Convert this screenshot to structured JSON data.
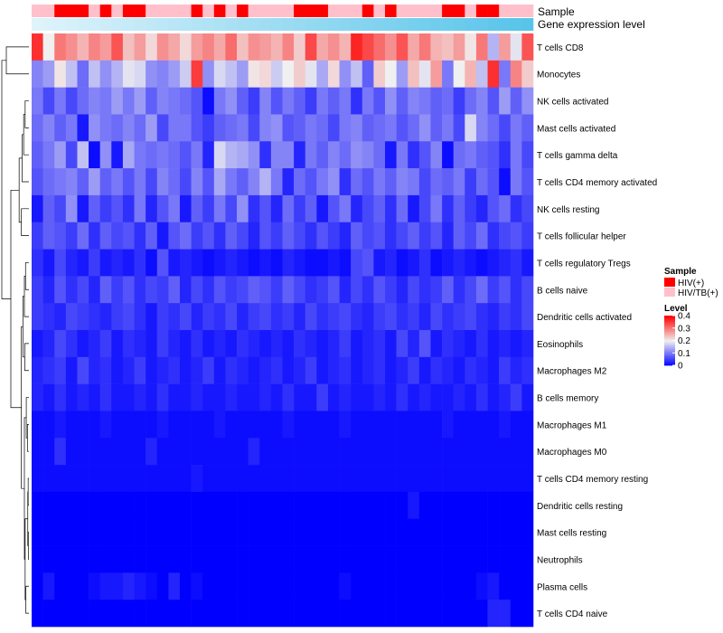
{
  "chart_data": {
    "type": "heatmap",
    "annotation_labels": {
      "sample": "Sample",
      "gene_expression": "Gene expression level"
    },
    "rows": [
      "T cells CD8",
      "Monocytes",
      "NK cells activated",
      "Mast cells activated",
      "T cells gamma delta",
      "T cells CD4 memory activated",
      "NK cells resting",
      "T cells follicular helper",
      "T cells regulatory  Tregs",
      "B cells naive",
      "Dendritic cells activated",
      "Eosinophils",
      "Macrophages M2",
      "B cells memory",
      "Macrophages M1",
      "Macrophages M0",
      "T cells CD4 memory resting",
      "Dendritic cells resting",
      "Mast cells resting",
      "Neutrophils",
      "Plasma cells",
      "T cells CD4 naive"
    ],
    "columns": 44,
    "sample_groups": [
      "HIV(+)",
      "HIV/TB(+)"
    ],
    "sample_annotation": [
      1,
      1,
      0,
      0,
      0,
      1,
      0,
      1,
      0,
      0,
      1,
      1,
      1,
      1,
      0,
      1,
      0,
      1,
      0,
      1,
      1,
      1,
      1,
      0,
      0,
      0,
      1,
      1,
      1,
      0,
      1,
      0,
      1,
      1,
      1,
      1,
      0,
      0,
      1,
      0,
      0,
      1,
      1,
      1
    ],
    "value_range": [
      0,
      0.4
    ],
    "legend": {
      "sample_title": "Sample",
      "sample_items": [
        {
          "label": "HIV(+)",
          "color": "#ff0000"
        },
        {
          "label": "HIV/TB(+)",
          "color": "#ffc0cb"
        }
      ],
      "level_title": "Level",
      "level_ticks": [
        "0.4",
        "0.3",
        "0.2",
        "0.1",
        "0"
      ],
      "level_values": [
        0.4,
        0.3,
        0.2,
        0.1,
        0
      ]
    },
    "colors": {
      "low": "#0000ff",
      "mid": "#f0f0f0",
      "high": "#ff0000",
      "annot_low": "#dff3fb",
      "annot_high": "#58c4ea"
    },
    "dendrogram": [
      {
        "a": 0,
        "b": 1,
        "h": 0.3
      },
      {
        "a": 2,
        "b": 3,
        "h": 0.05
      },
      {
        "a": "n1",
        "b": 4,
        "h": 0.07
      },
      {
        "a": "n2",
        "b": 5,
        "h": 0.09
      },
      {
        "a": 6,
        "b": 7,
        "h": 0.1
      },
      {
        "a": "n3",
        "b": "n4",
        "h": 0.13
      },
      {
        "a": 8,
        "b": 9,
        "h": 0.045
      },
      {
        "a": "n6",
        "b": 10,
        "h": 0.06
      },
      {
        "a": 11,
        "b": 12,
        "h": 0.055
      },
      {
        "a": "n7",
        "b": "n8",
        "h": 0.08
      },
      {
        "a": 14,
        "b": 15,
        "h": 0.02
      },
      {
        "a": 13,
        "b": "n10",
        "h": 0.035
      },
      {
        "a": 16,
        "b": 17,
        "h": 0.01
      },
      {
        "a": 18,
        "b": 19,
        "h": 0.008
      },
      {
        "a": "n12",
        "b": "n13",
        "h": 0.015
      },
      {
        "a": 20,
        "b": 21,
        "h": 0.04
      },
      {
        "a": "n14",
        "b": "n15",
        "h": 0.05
      },
      {
        "a": "n11",
        "b": "n16",
        "h": 0.06
      },
      {
        "a": "n9",
        "b": "n17",
        "h": 0.1
      },
      {
        "a": "n5",
        "b": "n18",
        "h": 0.24
      },
      {
        "a": "n0",
        "b": "n19",
        "h": 0.36
      }
    ],
    "values": [
      [
        0.36,
        0.2,
        0.3,
        0.28,
        0.25,
        0.29,
        0.27,
        0.33,
        0.24,
        0.27,
        0.22,
        0.28,
        0.26,
        0.22,
        0.27,
        0.29,
        0.26,
        0.31,
        0.24,
        0.28,
        0.27,
        0.25,
        0.29,
        0.23,
        0.34,
        0.26,
        0.28,
        0.25,
        0.37,
        0.34,
        0.31,
        0.28,
        0.33,
        0.26,
        0.3,
        0.25,
        0.24,
        0.27,
        0.21,
        0.3,
        0.15,
        0.27,
        0.19,
        0.33
      ],
      [
        0.11,
        0.13,
        0.21,
        0.16,
        0.09,
        0.16,
        0.12,
        0.15,
        0.19,
        0.18,
        0.12,
        0.11,
        0.13,
        0.17,
        0.35,
        0.12,
        0.18,
        0.16,
        0.13,
        0.21,
        0.22,
        0.17,
        0.2,
        0.23,
        0.19,
        0.14,
        0.22,
        0.12,
        0.16,
        0.08,
        0.23,
        0.2,
        0.13,
        0.24,
        0.19,
        0.27,
        0.1,
        0.2,
        0.25,
        0.16,
        0.36,
        0.1,
        0.29,
        0.23
      ],
      [
        0.1,
        0.06,
        0.1,
        0.06,
        0.09,
        0.11,
        0.1,
        0.13,
        0.1,
        0.13,
        0.08,
        0.11,
        0.1,
        0.09,
        0.07,
        0.01,
        0.1,
        0.12,
        0.08,
        0.05,
        0.11,
        0.07,
        0.1,
        0.08,
        0.05,
        0.1,
        0.08,
        0.1,
        0.04,
        0.1,
        0.07,
        0.12,
        0.08,
        0.11,
        0.1,
        0.08,
        0.09,
        0.05,
        0.09,
        0.11,
        0.07,
        0.13,
        0.08,
        0.12
      ],
      [
        0.09,
        0.11,
        0.08,
        0.1,
        0.02,
        0.12,
        0.1,
        0.09,
        0.11,
        0.09,
        0.13,
        0.06,
        0.1,
        0.1,
        0.07,
        0.05,
        0.08,
        0.09,
        0.1,
        0.06,
        0.11,
        0.12,
        0.07,
        0.08,
        0.1,
        0.09,
        0.06,
        0.1,
        0.11,
        0.08,
        0.09,
        0.1,
        0.07,
        0.09,
        0.12,
        0.08,
        0.1,
        0.06,
        0.18,
        0.11,
        0.09,
        0.06,
        0.1,
        0.08
      ],
      [
        0.08,
        0.1,
        0.13,
        0.06,
        0.16,
        0.01,
        0.12,
        0.02,
        0.14,
        0.1,
        0.09,
        0.1,
        0.09,
        0.07,
        0.1,
        0.03,
        0.18,
        0.15,
        0.14,
        0.12,
        0.04,
        0.11,
        0.11,
        0.03,
        0.1,
        0.08,
        0.11,
        0.09,
        0.12,
        0.11,
        0.09,
        0.02,
        0.1,
        0.04,
        0.07,
        0.11,
        0.01,
        0.09,
        0.1,
        0.08,
        0.07,
        0.04,
        0.1,
        0.06
      ],
      [
        0.07,
        0.09,
        0.1,
        0.11,
        0.08,
        0.13,
        0.08,
        0.1,
        0.07,
        0.1,
        0.06,
        0.11,
        0.09,
        0.06,
        0.11,
        0.07,
        0.14,
        0.1,
        0.08,
        0.11,
        0.15,
        0.1,
        0.03,
        0.09,
        0.07,
        0.1,
        0.12,
        0.04,
        0.09,
        0.07,
        0.1,
        0.08,
        0.11,
        0.1,
        0.06,
        0.09,
        0.08,
        0.1,
        0.05,
        0.09,
        0.07,
        0.01,
        0.1,
        0.07
      ],
      [
        0.02,
        0.08,
        0.06,
        0.12,
        0.02,
        0.08,
        0.05,
        0.07,
        0.04,
        0.1,
        0.03,
        0.07,
        0.1,
        0.02,
        0.08,
        0.05,
        0.1,
        0.06,
        0.12,
        0.04,
        0.07,
        0.03,
        0.09,
        0.05,
        0.08,
        0.02,
        0.07,
        0.1,
        0.03,
        0.06,
        0.08,
        0.04,
        0.09,
        0.02,
        0.06,
        0.1,
        0.04,
        0.08,
        0.05,
        0.03,
        0.07,
        0.09,
        0.04,
        0.06
      ],
      [
        0.05,
        0.08,
        0.07,
        0.05,
        0.09,
        0.04,
        0.08,
        0.06,
        0.07,
        0.04,
        0.08,
        0.02,
        0.07,
        0.09,
        0.05,
        0.07,
        0.04,
        0.08,
        0.06,
        0.03,
        0.07,
        0.05,
        0.08,
        0.06,
        0.04,
        0.07,
        0.05,
        0.03,
        0.08,
        0.06,
        0.07,
        0.04,
        0.06,
        0.08,
        0.05,
        0.07,
        0.03,
        0.08,
        0.06,
        0.09,
        0.04,
        0.06,
        0.07,
        0.05
      ],
      [
        0.04,
        0.02,
        0.06,
        0.03,
        0.02,
        0.05,
        0.02,
        0.03,
        0.02,
        0.04,
        0.01,
        0.07,
        0.02,
        0.03,
        0.02,
        0.01,
        0.02,
        0.03,
        0.02,
        0.01,
        0.02,
        0.01,
        0.03,
        0.02,
        0.01,
        0.01,
        0.02,
        0.01,
        0.06,
        0.07,
        0.02,
        0.03,
        0.01,
        0.02,
        0.04,
        0.01,
        0.02,
        0.03,
        0.02,
        0.01,
        0.02,
        0.03,
        0.04,
        0.02
      ],
      [
        0.05,
        0.03,
        0.07,
        0.04,
        0.06,
        0.03,
        0.08,
        0.05,
        0.07,
        0.04,
        0.06,
        0.05,
        0.08,
        0.03,
        0.06,
        0.04,
        0.07,
        0.05,
        0.06,
        0.08,
        0.07,
        0.05,
        0.08,
        0.06,
        0.04,
        0.05,
        0.07,
        0.03,
        0.06,
        0.04,
        0.07,
        0.05,
        0.03,
        0.06,
        0.04,
        0.05,
        0.08,
        0.04,
        0.06,
        0.09,
        0.05,
        0.07,
        0.04,
        0.06
      ],
      [
        0.05,
        0.04,
        0.03,
        0.06,
        0.05,
        0.04,
        0.03,
        0.05,
        0.06,
        0.04,
        0.02,
        0.05,
        0.04,
        0.06,
        0.03,
        0.05,
        0.04,
        0.06,
        0.03,
        0.05,
        0.06,
        0.04,
        0.05,
        0.03,
        0.06,
        0.04,
        0.05,
        0.06,
        0.04,
        0.03,
        0.05,
        0.06,
        0.04,
        0.05,
        0.03,
        0.06,
        0.04,
        0.05,
        0.06,
        0.04,
        0.03,
        0.05,
        0.04,
        0.06
      ],
      [
        0.02,
        0.03,
        0.06,
        0.04,
        0.02,
        0.03,
        0.05,
        0.02,
        0.04,
        0.03,
        0.02,
        0.05,
        0.03,
        0.02,
        0.04,
        0.02,
        0.03,
        0.02,
        0.04,
        0.03,
        0.02,
        0.03,
        0.02,
        0.04,
        0.03,
        0.02,
        0.03,
        0.05,
        0.02,
        0.03,
        0.04,
        0.02,
        0.06,
        0.03,
        0.07,
        0.02,
        0.04,
        0.03,
        0.02,
        0.04,
        0.02,
        0.03,
        0.02,
        0.03
      ],
      [
        0.03,
        0.04,
        0.05,
        0.02,
        0.06,
        0.03,
        0.04,
        0.02,
        0.03,
        0.05,
        0.02,
        0.03,
        0.04,
        0.02,
        0.03,
        0.05,
        0.02,
        0.04,
        0.03,
        0.02,
        0.03,
        0.04,
        0.02,
        0.03,
        0.05,
        0.02,
        0.03,
        0.04,
        0.02,
        0.03,
        0.04,
        0.02,
        0.03,
        0.05,
        0.02,
        0.04,
        0.03,
        0.02,
        0.04,
        0.03,
        0.02,
        0.05,
        0.03,
        0.04
      ],
      [
        0.03,
        0.02,
        0.04,
        0.02,
        0.03,
        0.02,
        0.04,
        0.02,
        0.02,
        0.03,
        0.02,
        0.04,
        0.02,
        0.02,
        0.03,
        0.02,
        0.02,
        0.03,
        0.02,
        0.02,
        0.03,
        0.02,
        0.04,
        0.02,
        0.02,
        0.05,
        0.02,
        0.03,
        0.02,
        0.02,
        0.03,
        0.02,
        0.04,
        0.02,
        0.03,
        0.02,
        0.02,
        0.03,
        0.02,
        0.04,
        0.02,
        0.03,
        0.05,
        0.02
      ],
      [
        0.01,
        0.01,
        0.02,
        0.01,
        0.01,
        0.01,
        0.02,
        0.01,
        0.01,
        0.01,
        0.01,
        0.02,
        0.01,
        0.01,
        0.01,
        0.01,
        0.02,
        0.01,
        0.01,
        0.01,
        0.01,
        0.01,
        0.02,
        0.01,
        0.01,
        0.01,
        0.01,
        0.02,
        0.01,
        0.01,
        0.01,
        0.01,
        0.01,
        0.01,
        0.01,
        0.01,
        0.02,
        0.01,
        0.01,
        0.01,
        0.01,
        0.02,
        0.01,
        0.01
      ],
      [
        0.01,
        0.01,
        0.04,
        0.01,
        0.01,
        0.01,
        0.01,
        0.01,
        0.01,
        0.01,
        0.03,
        0.01,
        0.01,
        0.01,
        0.01,
        0.01,
        0.01,
        0.01,
        0.01,
        0.03,
        0.01,
        0.01,
        0.01,
        0.01,
        0.01,
        0.01,
        0.01,
        0.01,
        0.01,
        0.01,
        0.01,
        0.01,
        0.01,
        0.01,
        0.01,
        0.01,
        0.01,
        0.01,
        0.01,
        0.01,
        0.01,
        0.01,
        0.01,
        0.01
      ],
      [
        0.01,
        0.01,
        0.01,
        0.01,
        0.01,
        0.01,
        0.01,
        0.01,
        0.01,
        0.01,
        0.01,
        0.01,
        0.01,
        0.01,
        0.02,
        0.01,
        0.01,
        0.01,
        0.01,
        0.01,
        0.01,
        0.01,
        0.01,
        0.01,
        0.01,
        0.01,
        0.01,
        0.01,
        0.01,
        0.01,
        0.01,
        0.01,
        0.01,
        0.01,
        0.01,
        0.01,
        0.01,
        0.01,
        0.01,
        0.01,
        0.01,
        0.01,
        0.01,
        0.01
      ],
      [
        0.0,
        0.0,
        0.0,
        0.0,
        0.0,
        0.0,
        0.0,
        0.0,
        0.0,
        0.0,
        0.0,
        0.0,
        0.0,
        0.0,
        0.0,
        0.0,
        0.0,
        0.0,
        0.0,
        0.0,
        0.0,
        0.0,
        0.0,
        0.0,
        0.0,
        0.0,
        0.0,
        0.0,
        0.0,
        0.0,
        0.0,
        0.0,
        0.0,
        0.02,
        0.0,
        0.0,
        0.0,
        0.0,
        0.0,
        0.0,
        0.0,
        0.0,
        0.0,
        0.0
      ],
      [
        0.0,
        0.0,
        0.0,
        0.0,
        0.0,
        0.0,
        0.0,
        0.0,
        0.0,
        0.0,
        0.0,
        0.0,
        0.0,
        0.0,
        0.0,
        0.0,
        0.0,
        0.0,
        0.0,
        0.0,
        0.0,
        0.0,
        0.0,
        0.0,
        0.0,
        0.0,
        0.0,
        0.0,
        0.0,
        0.0,
        0.0,
        0.0,
        0.0,
        0.0,
        0.0,
        0.0,
        0.0,
        0.0,
        0.0,
        0.0,
        0.0,
        0.0,
        0.0,
        0.0
      ],
      [
        0.0,
        0.0,
        0.0,
        0.0,
        0.0,
        0.0,
        0.0,
        0.0,
        0.0,
        0.0,
        0.0,
        0.0,
        0.0,
        0.0,
        0.0,
        0.0,
        0.0,
        0.0,
        0.0,
        0.0,
        0.0,
        0.0,
        0.0,
        0.0,
        0.0,
        0.0,
        0.0,
        0.0,
        0.0,
        0.0,
        0.0,
        0.0,
        0.0,
        0.0,
        0.0,
        0.0,
        0.0,
        0.0,
        0.0,
        0.0,
        0.0,
        0.0,
        0.0,
        0.0
      ],
      [
        0.0,
        0.02,
        0.0,
        0.0,
        0.0,
        0.01,
        0.02,
        0.02,
        0.03,
        0.02,
        0.01,
        0.0,
        0.03,
        0.0,
        0.01,
        0.0,
        0.0,
        0.0,
        0.0,
        0.0,
        0.0,
        0.0,
        0.0,
        0.0,
        0.0,
        0.0,
        0.0,
        0.01,
        0.0,
        0.0,
        0.0,
        0.0,
        0.0,
        0.0,
        0.0,
        0.0,
        0.0,
        0.0,
        0.0,
        0.01,
        0.02,
        0.0,
        0.0,
        0.0
      ],
      [
        0.0,
        0.0,
        0.0,
        0.0,
        0.0,
        0.0,
        0.0,
        0.0,
        0.0,
        0.0,
        0.0,
        0.0,
        0.0,
        0.0,
        0.0,
        0.0,
        0.0,
        0.0,
        0.0,
        0.0,
        0.0,
        0.0,
        0.0,
        0.0,
        0.0,
        0.0,
        0.0,
        0.0,
        0.0,
        0.0,
        0.0,
        0.0,
        0.0,
        0.0,
        0.0,
        0.0,
        0.0,
        0.0,
        0.0,
        0.0,
        0.03,
        0.03,
        0.0,
        0.0
      ]
    ]
  }
}
